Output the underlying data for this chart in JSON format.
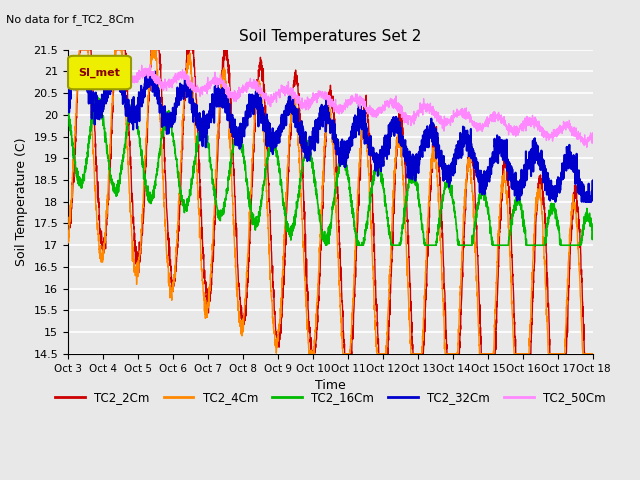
{
  "title": "Soil Temperatures Set 2",
  "subtitle": "No data for f_TC2_8Cm",
  "xlabel": "Time",
  "ylabel": "Soil Temperature (C)",
  "ylim": [
    14.5,
    21.5
  ],
  "yticks": [
    14.5,
    15.0,
    15.5,
    16.0,
    16.5,
    17.0,
    17.5,
    18.0,
    18.5,
    19.0,
    19.5,
    20.0,
    20.5,
    21.0,
    21.5
  ],
  "x_labels": [
    "Oct 3",
    "Oct 4",
    "Oct 5",
    "Oct 6",
    "Oct 7",
    "Oct 8",
    "Oct 9",
    "Oct 10",
    "Oct 11",
    "Oct 12",
    "Oct 13",
    "Oct 14",
    "Oct 15",
    "Oct 16",
    "Oct 17",
    "Oct 18"
  ],
  "series_names": [
    "TC2_2Cm",
    "TC2_4Cm",
    "TC2_16Cm",
    "TC2_32Cm",
    "TC2_50Cm"
  ],
  "series_colors": [
    "#CC0000",
    "#FF8800",
    "#00BB00",
    "#0000CC",
    "#FF88FF"
  ],
  "line_widths": [
    1.0,
    1.0,
    1.2,
    1.5,
    1.0
  ],
  "legend_label": "SI_met",
  "background_color": "#E8E8E8",
  "plot_bg_color": "#E8E8E8",
  "grid_color": "#FFFFFF",
  "n_points": 2880,
  "figsize": [
    6.4,
    4.8
  ],
  "dpi": 100
}
